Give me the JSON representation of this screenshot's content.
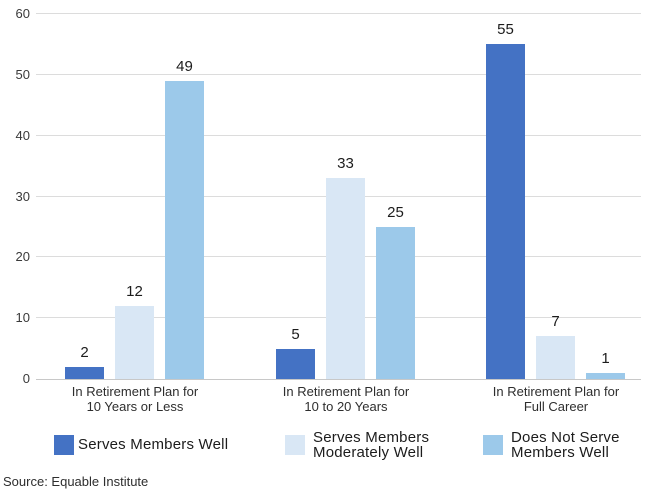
{
  "chart_data": {
    "type": "bar",
    "title": "",
    "categories": [
      "In Retirement Plan for 10 Years or Less",
      "In Retirement Plan for 10 to 20 Years",
      "In Retirement Plan for Full Career"
    ],
    "categories_lines": [
      [
        "In Retirement Plan for",
        "10 Years or Less"
      ],
      [
        "In Retirement Plan for",
        "10 to 20 Years"
      ],
      [
        "In Retirement Plan for",
        "Full Career"
      ]
    ],
    "series": [
      {
        "name": "Serves Members Well",
        "color": "#4472C4",
        "values": [
          2,
          5,
          55
        ]
      },
      {
        "name": "Serves Members Moderately Well",
        "color": "#D9E7F5",
        "values": [
          12,
          33,
          7
        ]
      },
      {
        "name": "Does Not Serve Members Well",
        "color": "#9CC9EA",
        "values": [
          49,
          25,
          1
        ]
      }
    ],
    "ylim": [
      0,
      60
    ],
    "yticks": [
      0,
      10,
      20,
      30,
      40,
      50,
      60
    ],
    "grid": true,
    "value_labels": true,
    "legend_position": "bottom"
  },
  "legend": {
    "items": [
      {
        "lines": [
          "Serves Members Well"
        ],
        "color": "#4472C4"
      },
      {
        "lines": [
          "Serves Members",
          "Moderately Well"
        ],
        "color": "#D9E7F5"
      },
      {
        "lines": [
          "Does Not Serve",
          "Members Well"
        ],
        "color": "#9CC9EA"
      }
    ]
  },
  "source": {
    "text": "Source: Equable Institute"
  }
}
